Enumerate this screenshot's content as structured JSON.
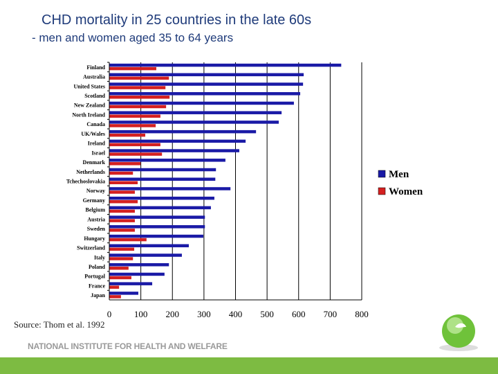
{
  "title": "CHD mortality in 25 countries in the late 60s",
  "subtitle": "- men and women aged 35 to 64 years",
  "source": "Source: Thom et al. 1992",
  "institution": "NATIONAL INSTITUTE FOR HEALTH AND WELFARE",
  "colors": {
    "men": "#1a1aa6",
    "women": "#d42020",
    "band": "#7dbb42"
  },
  "chart_data": {
    "type": "bar",
    "orientation": "horizontal",
    "title": "",
    "xlim": [
      0,
      800
    ],
    "xticks": [
      0,
      100,
      200,
      300,
      400,
      500,
      600,
      700,
      800
    ],
    "grid": true,
    "legend_position": "right",
    "categories": [
      "Finland",
      "Australia",
      "United States",
      "Scotland",
      "New Zealand",
      "North Ireland",
      "Canada",
      "UK/Wales",
      "Ireland",
      "Israel",
      "Denmark",
      "Netherlands",
      "Tchechoslovakia",
      "Norway",
      "Germany",
      "Belgium",
      "Austria",
      "Sweden",
      "Hungary",
      "Switzerland",
      "Italy",
      "Poland",
      "Portugal",
      "France",
      "Japan"
    ],
    "series": [
      {
        "name": "Men",
        "values": [
          735,
          616,
          614,
          605,
          585,
          546,
          537,
          465,
          432,
          412,
          368,
          338,
          336,
          384,
          333,
          322,
          303,
          303,
          298,
          252,
          230,
          189,
          175,
          136,
          92
        ]
      },
      {
        "name": "Women",
        "values": [
          149,
          189,
          178,
          191,
          180,
          162,
          147,
          114,
          162,
          167,
          99,
          75,
          90,
          81,
          90,
          81,
          81,
          81,
          118,
          79,
          75,
          61,
          70,
          31,
          37
        ]
      }
    ]
  }
}
